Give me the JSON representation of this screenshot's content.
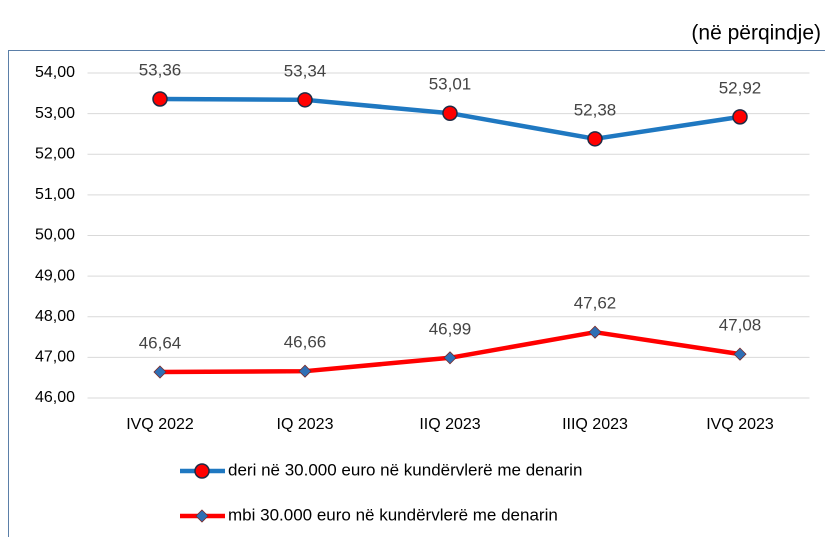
{
  "chart_data": {
    "type": "line",
    "subtitle": "(në përqindje)",
    "categories": [
      "IVQ 2022",
      "IQ 2023",
      "IIQ 2023",
      "IIIQ 2023",
      "IVQ 2023"
    ],
    "series": [
      {
        "name": "deri në 30.000 euro në kundërvlerë me denarin",
        "color": "#1f78c1",
        "marker": "circle",
        "marker_color": "#ff0000",
        "values": [
          53.36,
          53.34,
          53.01,
          52.38,
          52.92
        ],
        "value_labels": [
          "53,36",
          "53,34",
          "53,01",
          "52,38",
          "52,92"
        ]
      },
      {
        "name": "mbi 30.000 euro në kundërvlerë me denarin",
        "color": "#ff0000",
        "marker": "diamond",
        "marker_color": "#2e6fb5",
        "values": [
          46.64,
          46.66,
          46.99,
          47.62,
          47.08
        ],
        "value_labels": [
          "46,64",
          "46,66",
          "46,99",
          "47,62",
          "47,08"
        ]
      }
    ],
    "ylim": [
      46,
      54
    ],
    "yticks": [
      {
        "value": 46,
        "label": "46,00"
      },
      {
        "value": 47,
        "label": "47,00"
      },
      {
        "value": 48,
        "label": "48,00"
      },
      {
        "value": 49,
        "label": "49,00"
      },
      {
        "value": 50,
        "label": "50,00"
      },
      {
        "value": 51,
        "label": "51,00"
      },
      {
        "value": 52,
        "label": "52,00"
      },
      {
        "value": 53,
        "label": "53,00"
      },
      {
        "value": 54,
        "label": "54,00"
      }
    ],
    "grid": true,
    "legend": "bottom"
  }
}
